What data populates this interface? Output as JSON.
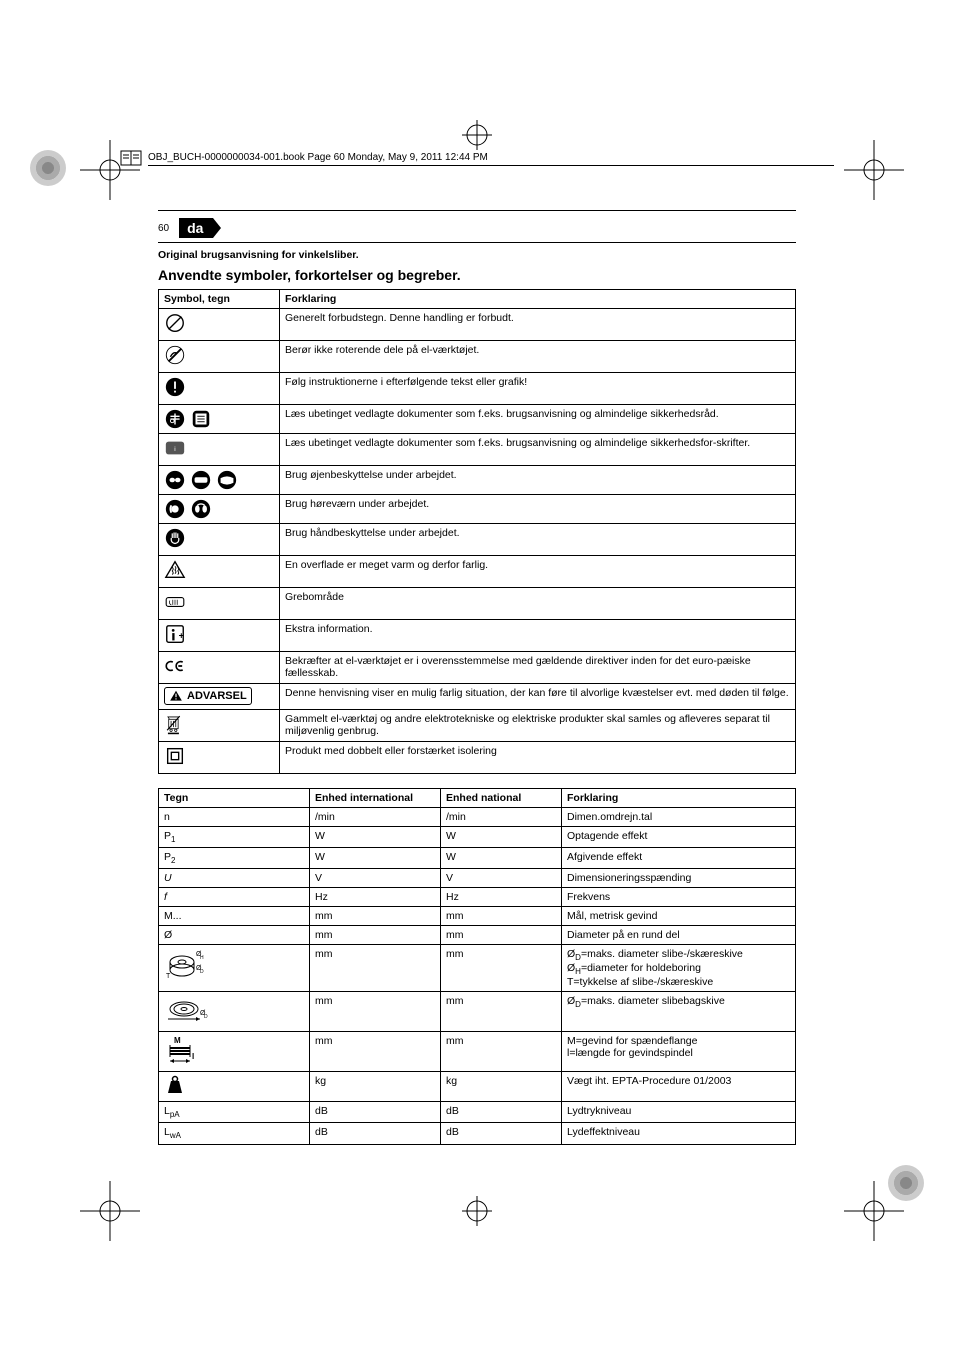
{
  "print": {
    "header_file_line": "OBJ_BUCH-0000000034-001.book  Page 60  Monday, May 9, 2011  12:44 PM"
  },
  "page": {
    "number": "60",
    "lang_code": "da",
    "original_instructions_line": "Original brugsanvisning for vinkelsliber.",
    "section_title": "Anvendte symboler, forkortelser og begreber."
  },
  "symbol_table": {
    "headers": {
      "symbol": "Symbol, tegn",
      "explanation": "Forklaring"
    },
    "rows": [
      {
        "icon": "prohibit",
        "text": "Generelt forbudstegn. Denne handling er forbudt."
      },
      {
        "icon": "no-touch-rotating",
        "text": "Berør ikke roterende dele på el-værktøjet."
      },
      {
        "icon": "follow-instr",
        "text": "Følg instruktionerne i efterfølgende tekst eller grafik!"
      },
      {
        "icon": "read-docs",
        "text": "Læs ubetinget vedlagte dokumenter som f.eks. brugsanvisning og almindelige sikkerhedsråd."
      },
      {
        "icon": "read-safety",
        "text": "Læs ubetinget vedlagte dokumenter som f.eks. brugsanvisning og almindelige sikkerhedsfor-skrifter."
      },
      {
        "icon": "eye-prot",
        "text": "Brug øjenbeskyttelse under arbejdet."
      },
      {
        "icon": "ear-prot",
        "text": "Brug høreværn under arbejdet."
      },
      {
        "icon": "hand-prot",
        "text": "Brug håndbeskyttelse under arbejdet."
      },
      {
        "icon": "hot-surface",
        "text": "En overflade er meget varm og derfor farlig."
      },
      {
        "icon": "grip-area",
        "text": "Grebområde"
      },
      {
        "icon": "extra-info",
        "text": "Ekstra information."
      },
      {
        "icon": "ce-mark",
        "text": "Bekræfter at el-værktøjet er i overensstemmelse med gældende direktiver inden for det euro-pæiske fællesskab."
      },
      {
        "icon": "advarsel",
        "text": "Denne henvisning viser en mulig farlig situation, der kan føre til alvorlige kvæstelser evt. med døden til følge."
      },
      {
        "icon": "weee",
        "text": "Gammelt el-værktøj og andre elektrotekniske og elektriske produkter skal samles og afleveres separat til miljøvenlig genbrug."
      },
      {
        "icon": "double-ins",
        "text": "Produkt med dobbelt eller forstærket isolering"
      }
    ],
    "advarsel_label": "ADVARSEL"
  },
  "spec_table": {
    "headers": {
      "sign": "Tegn",
      "unit_intl": "Enhed international",
      "unit_nat": "Enhed national",
      "explanation": "Forklaring"
    },
    "rows": [
      {
        "sign_html": "n",
        "intl": "/min",
        "nat": "/min",
        "expl": "Dimen.omdrejn.tal"
      },
      {
        "sign_html": "P<span class='sub'>1</span>",
        "intl": "W",
        "nat": "W",
        "expl": "Optagende effekt"
      },
      {
        "sign_html": "P<span class='sub'>2</span>",
        "intl": "W",
        "nat": "W",
        "expl": "Afgivende effekt"
      },
      {
        "sign_html": "<span class='italic'>U</span>",
        "intl": "V",
        "nat": "V",
        "expl": "Dimensioneringsspænding"
      },
      {
        "sign_html": "<span class='italic'>f</span>",
        "intl": "Hz",
        "nat": "Hz",
        "expl": "Frekvens"
      },
      {
        "sign_html": "M...",
        "intl": "mm",
        "nat": "mm",
        "expl": "Mål, metrisk gevind"
      },
      {
        "sign_html": "Ø",
        "intl": "mm",
        "nat": "mm",
        "expl": "Diameter på en rund del"
      },
      {
        "sign_html": "__DISC_DIAG__",
        "intl": "mm",
        "nat": "mm",
        "expl": "Ø<span class='sub'>D</span>=maks. diameter slibe-/skæreskive<br>Ø<span class='sub'>H</span>=diameter for holdeboring<br>T=tykkelse af slibe-/skæreskive"
      },
      {
        "sign_html": "__CUP_DIAG__",
        "intl": "mm",
        "nat": "mm",
        "expl": "Ø<span class='sub'>D</span>=maks. diameter slibebagskive"
      },
      {
        "sign_html": "__SPINDLE_DIAG__",
        "intl": "mm",
        "nat": "mm",
        "expl": "M=gevind for spændeflange<br>l=længde for gevindspindel"
      },
      {
        "sign_html": "__WEIGHT_ICON__",
        "intl": "kg",
        "nat": "kg",
        "expl": "Vægt iht. EPTA-Procedure 01/2003"
      },
      {
        "sign_html": "L<span class='sub'>pA</span>",
        "intl": "dB",
        "nat": "dB",
        "expl": "Lydtrykniveau"
      },
      {
        "sign_html": "L<span class='sub'>wA</span>",
        "intl": "dB",
        "nat": "dB",
        "expl": "Lydeffektniveau"
      }
    ]
  }
}
